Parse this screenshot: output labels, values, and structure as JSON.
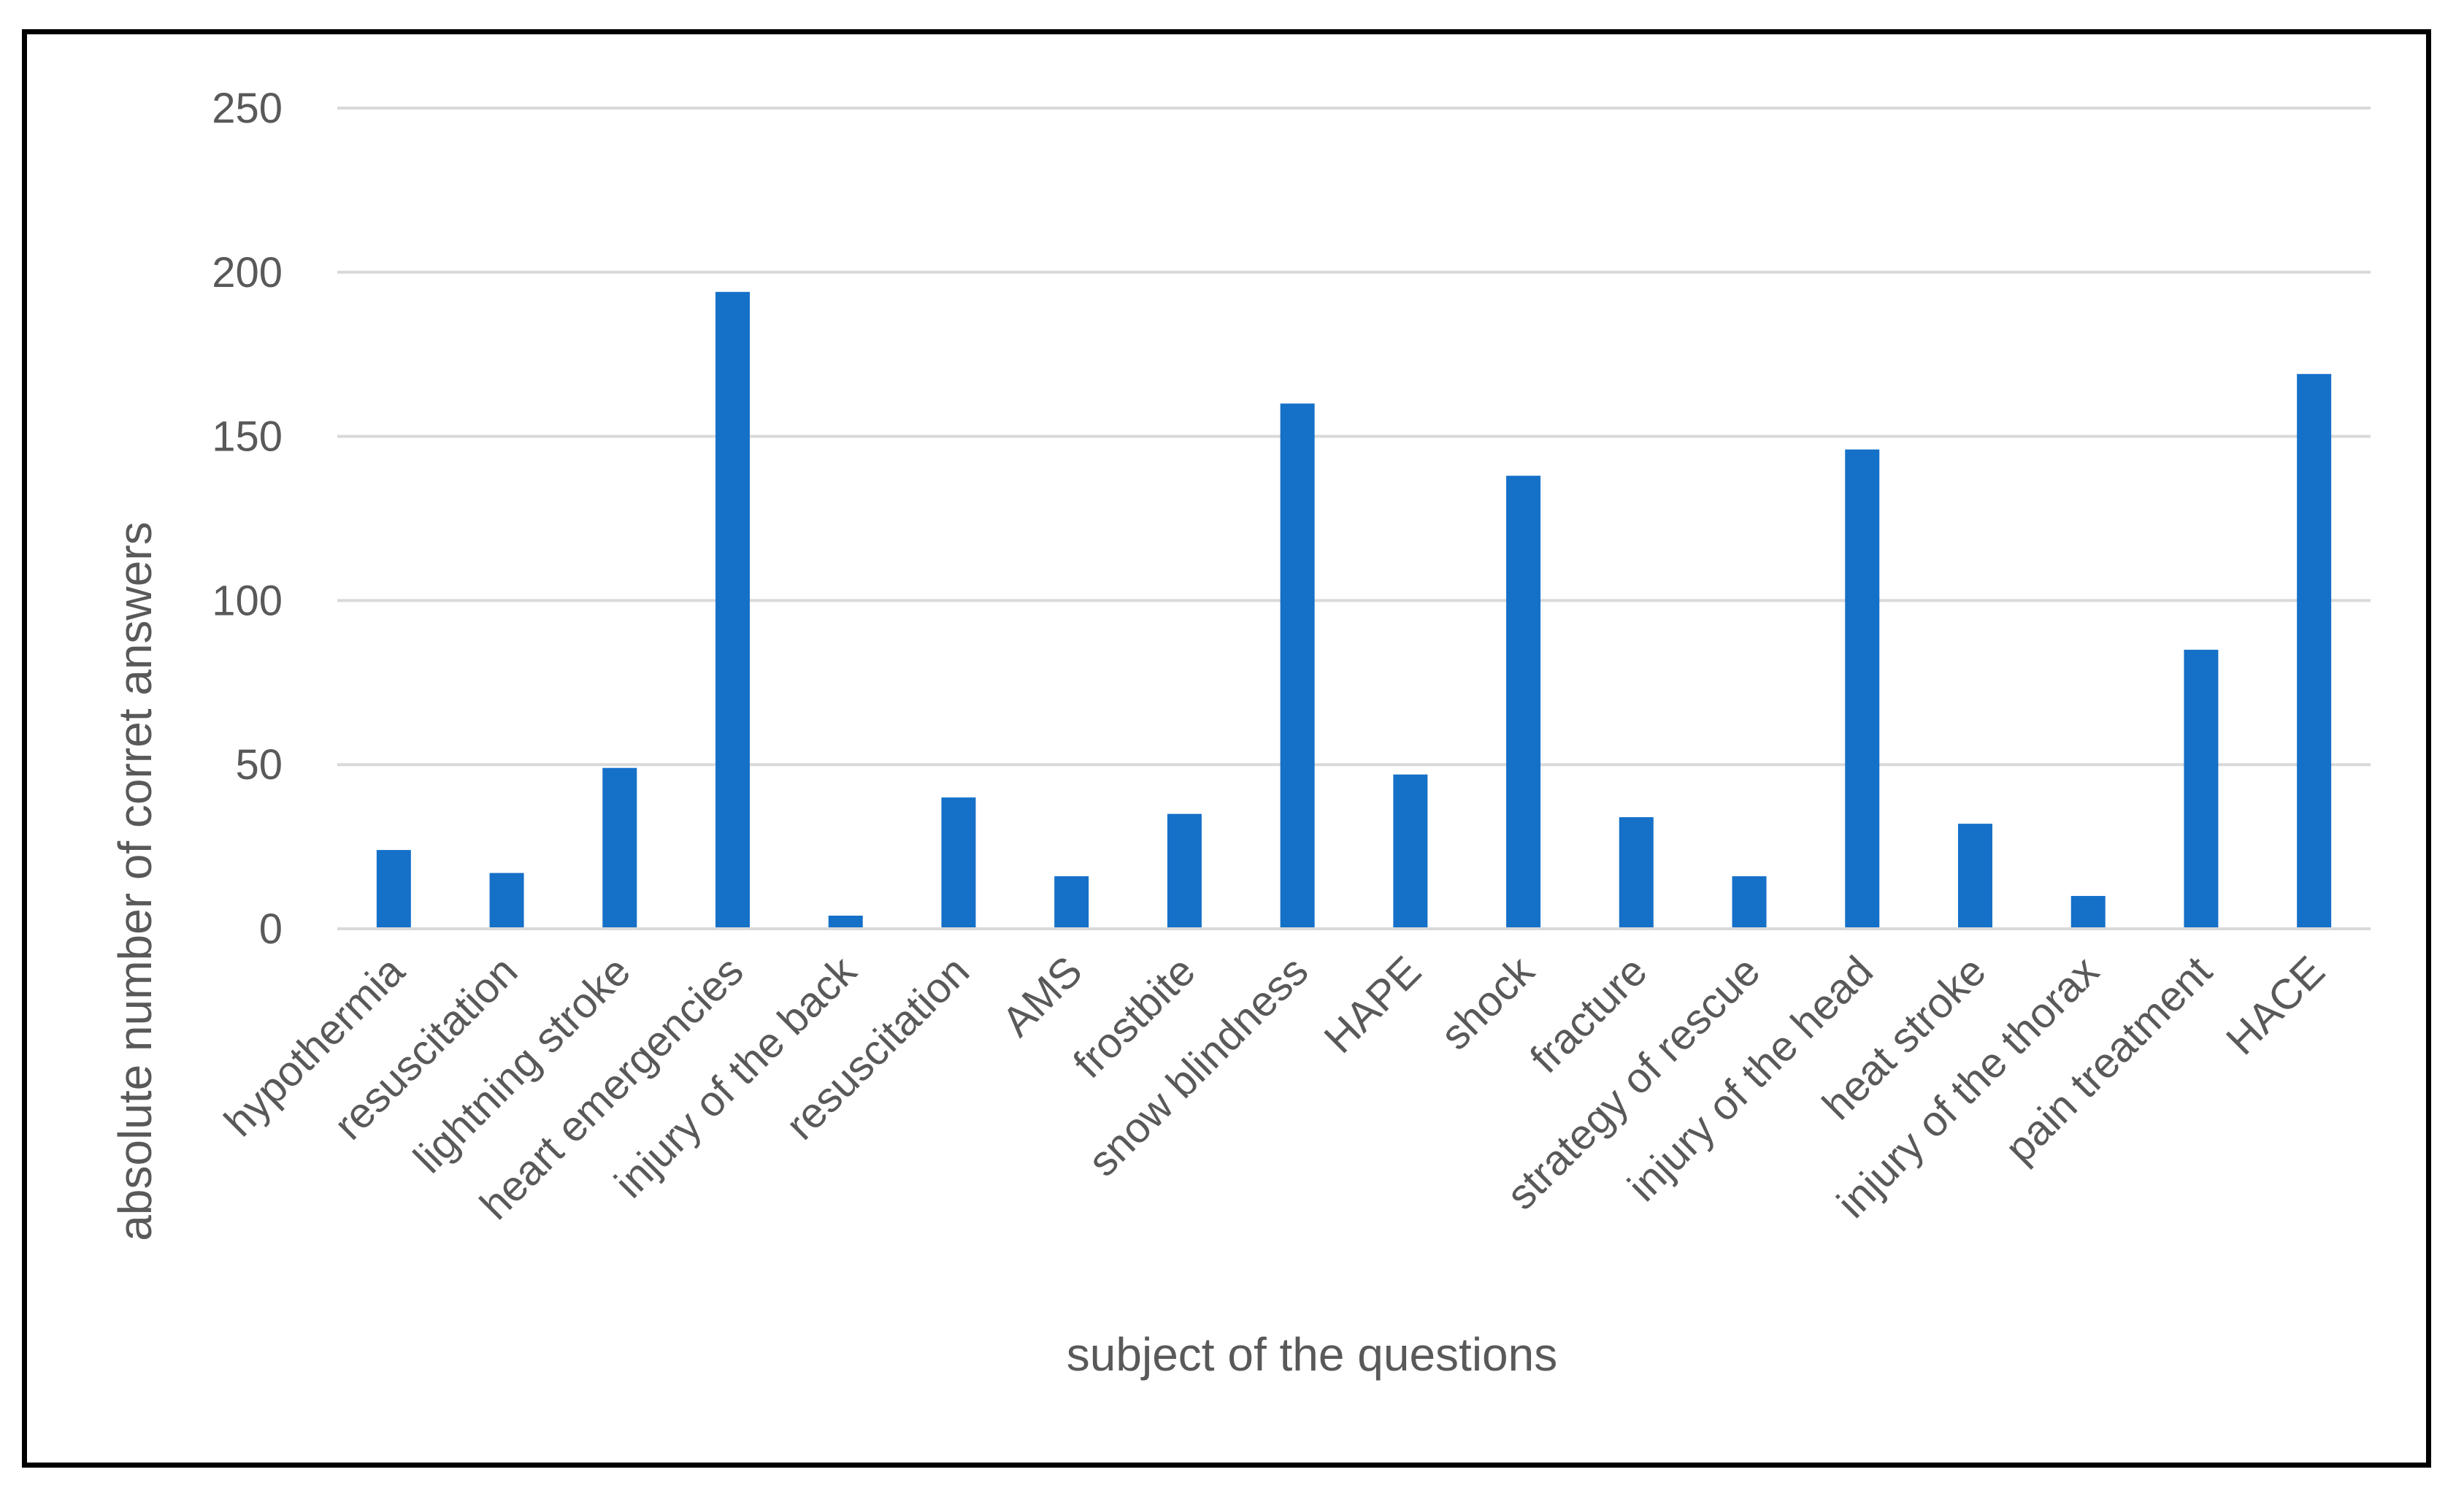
{
  "chart_data": {
    "type": "bar",
    "title": "",
    "xlabel": "subject of the questions",
    "ylabel": "absolute number of corret answers",
    "ylim": [
      0,
      250
    ],
    "yticks": [
      0,
      50,
      100,
      150,
      200,
      250
    ],
    "grid": true,
    "legend": "none",
    "bar_color": "#1570C8",
    "grid_color": "#D9D9D9",
    "categories": [
      "hypothermia",
      "resuscitation",
      "lightning stroke",
      "heart emergencies",
      "injury of the back",
      "resuscitation",
      "AMS",
      "frostbite",
      "snow blindness",
      "HAPE",
      "shock",
      "fracture",
      "strategy of rescue",
      "injury of the head",
      "heat stroke",
      "injury of the thorax",
      "pain treatment",
      "HACE"
    ],
    "values": [
      24,
      17,
      49,
      194,
      4,
      40,
      16,
      35,
      160,
      47,
      138,
      34,
      16,
      146,
      32,
      10,
      85,
      169
    ]
  }
}
